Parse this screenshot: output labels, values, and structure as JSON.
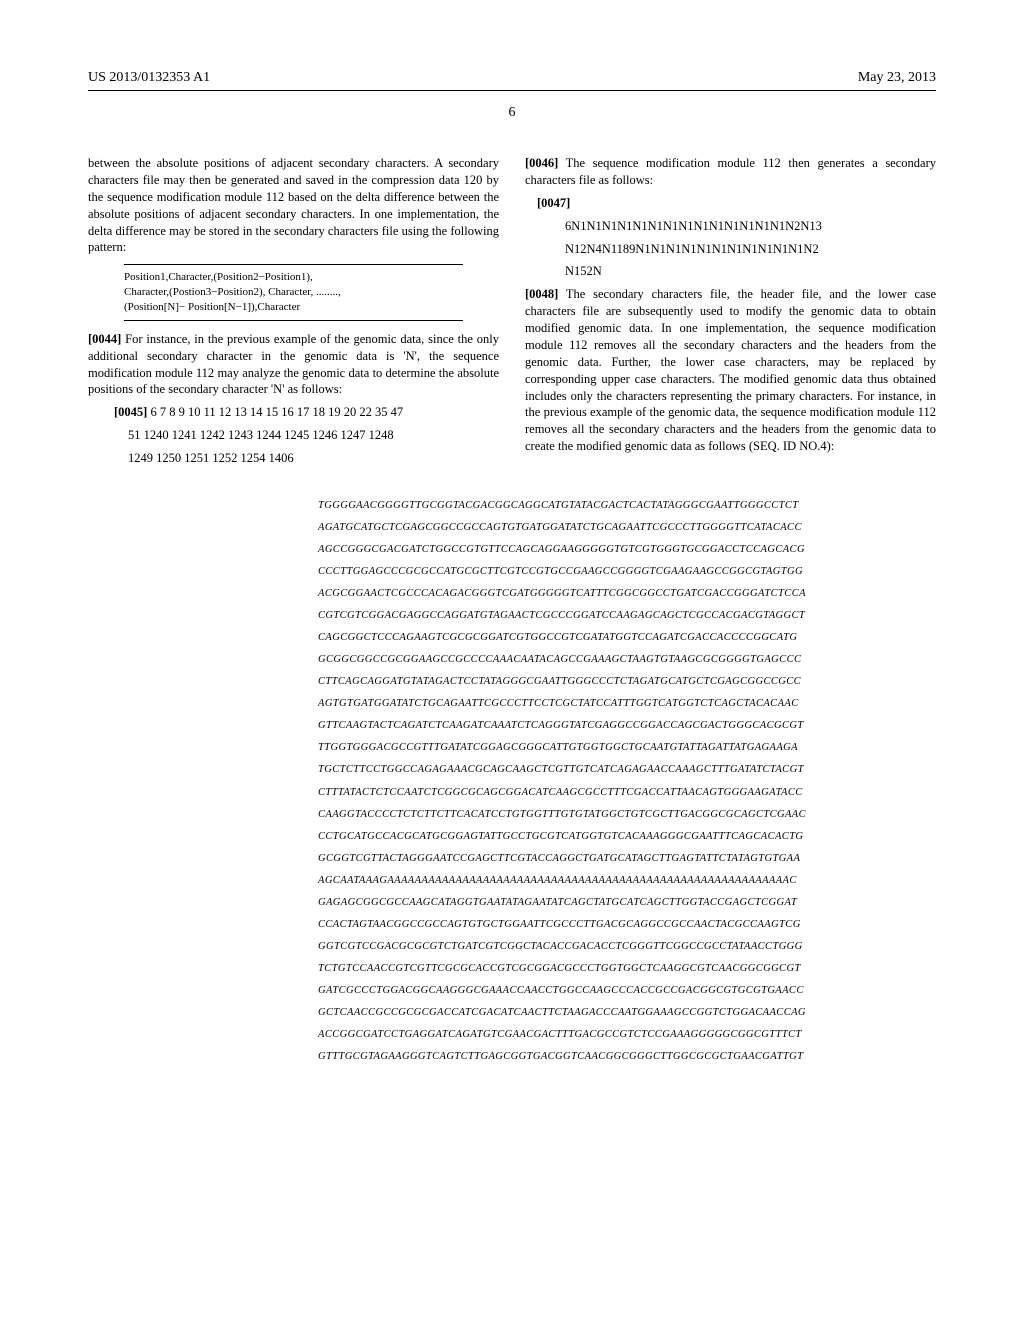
{
  "header": {
    "pub_no": "US 2013/0132353 A1",
    "date": "May 23, 2013",
    "page_no": "6"
  },
  "left_col": {
    "para1": "between the absolute positions of adjacent secondary characters. A secondary characters file may then be generated and saved in the compression data 120 by the sequence modification module 112 based on the delta difference between the absolute positions of adjacent secondary characters. In one implementation, the delta difference may be stored in the secondary characters file using the following pattern:",
    "pattern_lines": [
      "Position1,Character,(Position2−Position1),",
      "Character,(Postion3−Position2), Character, ........,",
      "(Position[N]− Position[N−1]),Character"
    ],
    "para44_num": "[0044]",
    "para44": " For instance, in the previous example of the genomic data, since the only additional secondary character in the genomic data is 'N', the sequence modification module 112 may analyze the genomic data to determine the absolute positions of the secondary character 'N' as follows:",
    "para45_num": "[0045]",
    "para45_line1": " 6 7 8 9 10 11 12 13 14 15 16 17 18 19 20 22 35 47",
    "para45_line2": "51 1240 1241 1242 1243 1244 1245 1246 1247 1248",
    "para45_line3": "1249 1250 1251 1252 1254 1406"
  },
  "right_col": {
    "para46_num": "[0046]",
    "para46": " The sequence modification module 112 then generates a secondary characters file as follows:",
    "para47_num": "[0047]",
    "para47_line1": "6N1N1N1N1N1N1N1N1N1N1N1N1N1N1N2N13",
    "para47_line2": "N12N4N1189N1N1N1N1N1N1N1N1N1N1N1N2",
    "para47_line3": "N152N",
    "para48_num": "[0048]",
    "para48": " The secondary characters file, the header file, and the lower case characters file are subsequently used to modify the genomic data to obtain modified genomic data. In one implementation, the sequence modification module 112 removes all the secondary characters and the headers from the genomic data. Further, the lower case characters, may be replaced by corresponding upper case characters. The modified genomic data thus obtained includes only the characters representing the primary characters. For instance, in the previous example of the genomic data, the sequence modification module 112 removes all the secondary characters and the headers from the genomic data to create the modified genomic data as follows (SEQ. ID NO.4):"
  },
  "sequences": [
    "TGGGGAACGGGGTTGCGGTACGACGGCAGGCATGTATACGACTCACTATAGGGCGAATTGGGCCTCT",
    "AGATGCATGCTCGAGCGGCCGCCAGTGTGATGGATATCTGCAGAATTCGCCCTTGGGGTTCATACACC",
    "AGCCGGGCGACGATCTGGCCGTGTTCCAGCAGGAAGGGGGTGTCGTGGGTGCGGACCTCCAGCACG",
    "CCCTTGGAGCCCGCGCCATGCGCTTCGTCCGTGCCGAAGCCGGGGTCGAAGAAGCCGGCGTAGTGG",
    "ACGCGGAACTCGCCCACAGACGGGTCGATGGGGGTCATTTCGGCGGCCTGATCGACCGGGATCTCCA",
    "CGTCGTCGGACGAGGCCAGGATGTAGAACTCGCCCGGATCCAAGAGCAGCTCGCCACGACGTAGGCT",
    "CAGCGGCTCCCAGAAGTCGCGCGGATCGTGGCCGTCGATATGGTCCAGATCGACCACCCCGGCATG",
    "GCGGCGGCCGCGGAAGCCGCCCCAAACAATACAGCCGAAAGCTAAGTGTAAGCGCGGGGTGAGCCC",
    "CTTCAGCAGGATGTATAGACTCCTATAGGGCGAATTGGGCCCTCTAGATGCATGCTCGAGCGGCCGCC",
    "AGTGTGATGGATATCTGCAGAATTCGCCCTTCCTCGCTATCCATTTGGTCATGGTCTCAGCTACACAAC",
    "GTTCAAGTACTCAGATCTCAAGATCAAATCTCAGGGTATCGAGGCCGGACCAGCGACTGGGCACGCGT",
    "TTGGTGGGACGCCGTTTGATATCGGAGCGGGCATTGTGGTGGCTGCAATGTATTAGATTATGAGAAGA",
    "TGCTCTTCCTGGCCAGAGAAACGCAGCAAGCTCGTTGTCATCAGAGAACCAAAGCTTTGATATCTACGT",
    "CTTTATACTCTCCAATCTCGGCGCAGCGGACATCAAGCGCCTTTCGACCATTAACAGTGGGAAGATACC",
    "CAAGGTACCCCTCTCTTCTTCACATCCTGTGGTTTGTGTATGGCTGTCGCTTGACGGCGCAGCTCGAAC",
    "CCTGCATGCCACGCATGCGGAGTATTGCCTGCGTCATGGTGTCACAAAGGGCGAATTTCAGCACACTG",
    "GCGGTCGTTACTAGGGAATCCGAGCTTCGTACCAGGCTGATGCATAGCTTGAGTATTCTATAGTGTGAA",
    "AGCAATAAAGAAAAAAAAAAAAAAAAAAAAAAAAAAAAAAAAAAAAAAAAAAAAAAAAAAAAAAAAAAAC",
    "GAGAGCGGCGCCAAGCATAGGTGAATATAGAATATCAGCTATGCATCAGCTTGGTACCGAGCTCGGAT",
    "CCACTAGTAACGGCCGCCAGTGTGCTGGAATTCGCCCTTGACGCAGGCCGCCAACTACGCCAAGTCG",
    "GGTCGTCCGACGCGCGTCTGATCGTCGGCTACACCGACACCTCGGGTTCGGCCGCCTATAACCTGGG",
    "TCTGTCCAACCGTCGTTCGCGCACCGTCGCGGACGCCCTGGTGGCTCAAGGCGTCAACGGCGGCGT",
    "GATCGCCCTGGACGGCAAGGGCGAAACCAACCTGGCCAAGCCCACCGCCGACGGCGTGCGTGAACC",
    "GCTCAACCGCCGCGCGACCATCGACATCAACTTCTAAGACCCAATGGAAAGCCGGTCTGGACAACCAG",
    "ACCGGCGATCCTGAGGATCAGATGTCGAACGACTTTGACGCCGTCTCCGAAAGGGGGCGGCGTTTCT",
    "GTTTGCGTAGAAGGGTCAGTCTTGAGCGGTGACGGTCAACGGCGGGCTTGGCGCGCTGAACGATTGT"
  ]
}
